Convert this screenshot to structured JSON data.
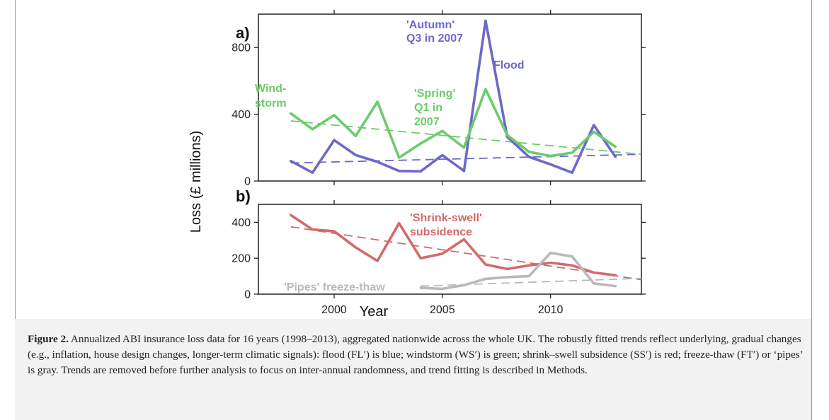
{
  "chart_data": [
    {
      "panel_label": "a)",
      "type": "line",
      "ylabel": "Loss (£ millions)",
      "xlim": [
        1996.5,
        2014.2
      ],
      "ylim": [
        0,
        1000
      ],
      "xticks": [
        2000,
        2005,
        2010
      ],
      "yticks": [
        0,
        400,
        800
      ],
      "series": [
        {
          "name": "Flood",
          "color": "#6b69c9",
          "x": [
            1998,
            1999,
            2000,
            2001,
            2002,
            2003,
            2004,
            2005,
            2006,
            2007,
            2008,
            2009,
            2010,
            2011,
            2012,
            2013
          ],
          "values": [
            120,
            50,
            245,
            155,
            115,
            60,
            58,
            155,
            60,
            960,
            265,
            145,
            100,
            50,
            335,
            145
          ]
        },
        {
          "name": "Wind-storm",
          "color": "#6ccb6c",
          "x": [
            1998,
            1999,
            2000,
            2001,
            2002,
            2003,
            2004,
            2005,
            2006,
            2007,
            2008,
            2009,
            2010,
            2011,
            2012,
            2013
          ],
          "values": [
            405,
            310,
            395,
            270,
            475,
            140,
            225,
            300,
            200,
            550,
            275,
            175,
            150,
            170,
            295,
            205
          ]
        }
      ],
      "trends": [
        {
          "color": "#6b69c9",
          "x": [
            1998,
            2014.2
          ],
          "values": [
            108,
            160
          ]
        },
        {
          "color": "#6ccb6c",
          "x": [
            1998,
            2014.2
          ],
          "values": [
            360,
            160
          ]
        }
      ],
      "annotations": {
        "autumn_line1": "'Autumn'",
        "autumn_line2": "Q3 in 2007",
        "flood": "Flood",
        "wind_line1": "Wind-",
        "wind_line2": "storm",
        "spring_line1": "'Spring'",
        "spring_line2": "Q1 in",
        "spring_line3": "2007"
      }
    },
    {
      "panel_label": "b)",
      "type": "line",
      "xlabel": "Year",
      "xlim": [
        1996.5,
        2014.2
      ],
      "ylim": [
        0,
        500
      ],
      "xticks": [
        2000,
        2005,
        2010
      ],
      "xtick_labels": [
        "2000",
        "2005",
        "2010"
      ],
      "yticks": [
        0,
        200,
        400
      ],
      "series": [
        {
          "name": "'Shrink-swell' subsidence",
          "color": "#d46a6a",
          "x": [
            1998,
            1999,
            2000,
            2001,
            2002,
            2003,
            2004,
            2005,
            2006,
            2007,
            2008,
            2009,
            2010,
            2011,
            2012,
            2013
          ],
          "values": [
            440,
            360,
            350,
            260,
            185,
            395,
            200,
            225,
            305,
            165,
            140,
            160,
            175,
            160,
            120,
            105
          ]
        },
        {
          "name": "'Pipes' freeze-thaw",
          "color": "#b9b9b9",
          "x": [
            2004,
            2005,
            2006,
            2007,
            2008,
            2009,
            2010,
            2011,
            2012,
            2013
          ],
          "values": [
            35,
            30,
            50,
            85,
            95,
            100,
            230,
            210,
            60,
            45
          ]
        }
      ],
      "trends": [
        {
          "color": "#d46a6a",
          "x": [
            1998,
            2014.2
          ],
          "values": [
            375,
            80
          ]
        },
        {
          "color": "#b9b9b9",
          "x": [
            2004,
            2014.2
          ],
          "values": [
            45,
            88
          ]
        }
      ],
      "annotations": {
        "shrink_line1": "'Shrink-swell'",
        "shrink_line2": "subsidence",
        "pipes": "'Pipes' freeze-thaw"
      }
    }
  ],
  "caption": {
    "label": "Figure 2.",
    "text": "Annualized ABI insurance loss data for 16 years (1998–2013), aggregated nationwide across the whole UK. The robustly fitted trends reflect underlying, gradual changes (e.g., inflation, house design changes, longer-term climatic signals): flood (FL′) is blue; windstorm (WS′) is green; shrink–swell subsidence (SS′) is red; freeze-thaw (FT′) or ‘pipes’ is gray. Trends are removed before further analysis to focus on inter-annual randomness, and trend fitting is described in Methods."
  }
}
